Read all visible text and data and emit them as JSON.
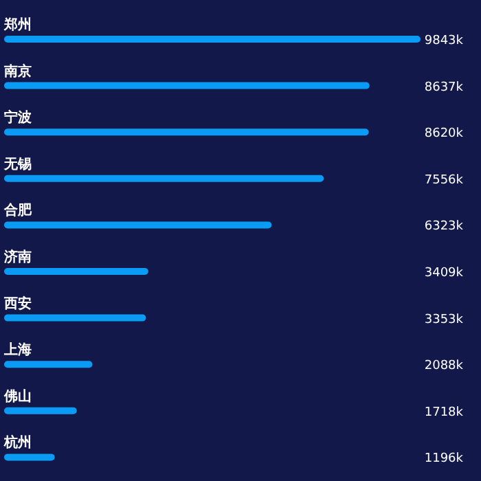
{
  "chart_data": {
    "type": "bar",
    "orientation": "horizontal",
    "categories": [
      "郑州",
      "南京",
      "宁波",
      "无锡",
      "合肥",
      "济南",
      "西安",
      "上海",
      "佛山",
      "杭州"
    ],
    "values": [
      9843,
      8637,
      8620,
      7556,
      6323,
      3409,
      3353,
      2088,
      1718,
      1196
    ],
    "value_labels": [
      "9843k",
      "8637k",
      "8620k",
      "7556k",
      "6323k",
      "3409k",
      "3353k",
      "2088k",
      "1718k",
      "1196k"
    ],
    "color": "#0a9cf5",
    "grid": false,
    "legend": false,
    "tick_labels": false
  }
}
